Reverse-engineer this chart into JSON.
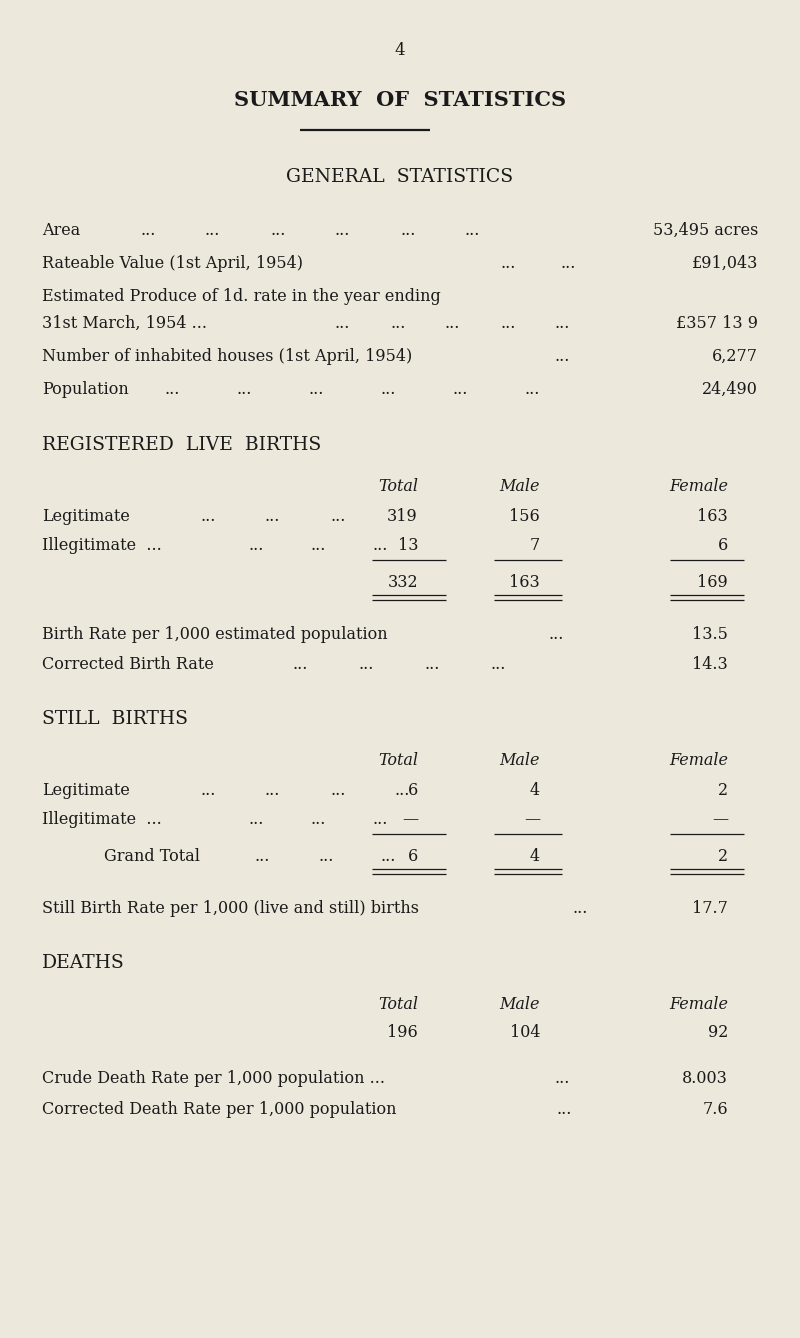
{
  "bg_color": "#ede8dc",
  "text_color": "#1a1a1a",
  "page_number": "4",
  "title": "SUMMARY  OF  STATISTICS",
  "subtitle": "GENERAL  STATISTICS",
  "bg_color2": "#eae4d6"
}
